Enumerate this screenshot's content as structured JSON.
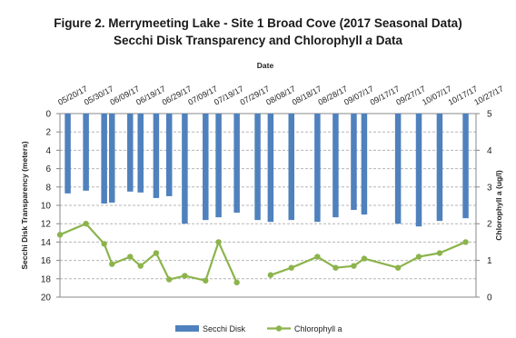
{
  "chart_data": {
    "type": "bar+line",
    "title_line1": "Figure 2. Merrymeeting Lake - Site 1 Broad Cove (2017 Seasonal Data)",
    "title_line2_pre": "Secchi Disk Transparency and Chlorophyll ",
    "title_line2_italic": "a",
    "title_line2_post": "  Data",
    "xlabel": "Date",
    "ylabel_left": "Secchi Disk Transparency (meters)",
    "ylabel_right": "Chlorophyll a (ug/l)",
    "date_labels": [
      "05/20/17",
      "05/30/17",
      "06/09/17",
      "06/19/17",
      "06/29/17",
      "07/09/17",
      "07/19/17",
      "07/29/17",
      "08/08/17",
      "08/18/17",
      "08/28/17",
      "09/07/17",
      "09/17/17",
      "09/27/17",
      "10/07/17",
      "10/17/17",
      "10/27/17"
    ],
    "x_range": [
      "2017-05-20",
      "2017-10-27"
    ],
    "left_axis": {
      "min": 0,
      "max": 20,
      "inverted": true,
      "ticks": [
        0,
        2,
        4,
        6,
        8,
        10,
        12,
        14,
        16,
        18,
        20
      ]
    },
    "right_axis": {
      "min": 0,
      "max": 5,
      "ticks": [
        0,
        1,
        2,
        3,
        4,
        5
      ]
    },
    "grid": "horizontal dashed",
    "legend_position": "bottom",
    "series": [
      {
        "name": "Secchi Disk",
        "kind": "bar",
        "color": "#4f81bd",
        "points": [
          {
            "date": "2017-05-23",
            "value": 8.7
          },
          {
            "date": "2017-05-30",
            "value": 8.4
          },
          {
            "date": "2017-06-06",
            "value": 9.8
          },
          {
            "date": "2017-06-09",
            "value": 9.7
          },
          {
            "date": "2017-06-16",
            "value": 8.5
          },
          {
            "date": "2017-06-20",
            "value": 8.6
          },
          {
            "date": "2017-06-26",
            "value": 9.2
          },
          {
            "date": "2017-07-01",
            "value": 9.0
          },
          {
            "date": "2017-07-07",
            "value": 12.0
          },
          {
            "date": "2017-07-15",
            "value": 11.6
          },
          {
            "date": "2017-07-20",
            "value": 11.3
          },
          {
            "date": "2017-07-27",
            "value": 10.8
          },
          {
            "date": "2017-08-04",
            "value": 11.6
          },
          {
            "date": "2017-08-09",
            "value": 11.8
          },
          {
            "date": "2017-08-17",
            "value": 11.6
          },
          {
            "date": "2017-08-27",
            "value": 11.8
          },
          {
            "date": "2017-09-03",
            "value": 11.3
          },
          {
            "date": "2017-09-10",
            "value": 10.5
          },
          {
            "date": "2017-09-14",
            "value": 11.0
          },
          {
            "date": "2017-09-27",
            "value": 12.0
          },
          {
            "date": "2017-10-05",
            "value": 12.3
          },
          {
            "date": "2017-10-13",
            "value": 11.7
          },
          {
            "date": "2017-10-23",
            "value": 11.4
          }
        ]
      },
      {
        "name": "Chlorophyll a",
        "kind": "line",
        "color": "#8cb44c",
        "segments": [
          [
            {
              "date": "2017-05-20",
              "value": 1.7
            },
            {
              "date": "2017-05-30",
              "value": 2.0
            },
            {
              "date": "2017-06-06",
              "value": 1.45
            },
            {
              "date": "2017-06-09",
              "value": 0.9
            },
            {
              "date": "2017-06-16",
              "value": 1.1
            },
            {
              "date": "2017-06-20",
              "value": 0.85
            },
            {
              "date": "2017-06-26",
              "value": 1.2
            },
            {
              "date": "2017-07-01",
              "value": 0.48
            },
            {
              "date": "2017-07-07",
              "value": 0.58
            },
            {
              "date": "2017-07-15",
              "value": 0.45
            },
            {
              "date": "2017-07-20",
              "value": 1.5
            },
            {
              "date": "2017-07-27",
              "value": 0.4
            }
          ],
          [
            {
              "date": "2017-08-09",
              "value": 0.6
            },
            {
              "date": "2017-08-17",
              "value": 0.8
            },
            {
              "date": "2017-08-27",
              "value": 1.1
            },
            {
              "date": "2017-09-03",
              "value": 0.8
            },
            {
              "date": "2017-09-10",
              "value": 0.85
            },
            {
              "date": "2017-09-14",
              "value": 1.05
            },
            {
              "date": "2017-09-27",
              "value": 0.8
            },
            {
              "date": "2017-10-05",
              "value": 1.1
            },
            {
              "date": "2017-10-13",
              "value": 1.2
            },
            {
              "date": "2017-10-23",
              "value": 1.5
            }
          ]
        ]
      }
    ]
  }
}
